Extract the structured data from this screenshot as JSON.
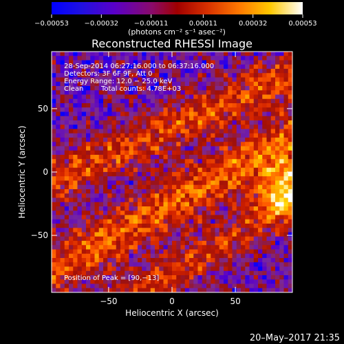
{
  "chart_data": {
    "type": "heatmap",
    "title": "Reconstructed RHESSI Image",
    "xlabel": "Heliocentric X (arcsec)",
    "ylabel": "Heliocentric Y (arcsec)",
    "xlim": [
      -95,
      95
    ],
    "ylim": [
      -95,
      95
    ],
    "x_ticks": [
      -50,
      0,
      50
    ],
    "y_ticks": [
      -50,
      0,
      50
    ],
    "x_tick_labels": [
      "−50",
      "0",
      "50"
    ],
    "y_tick_labels": [
      "−50",
      "0",
      "50"
    ],
    "colorbar": {
      "range": [
        -0.00053,
        0.00053
      ],
      "ticks": [
        -0.00053,
        -0.00032,
        -0.00011,
        0.00011,
        0.00032,
        0.00053
      ],
      "tick_labels": [
        "−0.00053",
        "−0.00032",
        "−0.00011",
        "0.00011",
        "0.00032",
        "0.00053"
      ],
      "unit_label": "(photons cm⁻² s⁻¹ asec⁻²)"
    },
    "annotations": {
      "time": "28-Sep-2014 06:27:16.000 to 06:37:16.000",
      "detectors": "Detectors: 3F 6F 9F, Att 0",
      "energy": "Energy Range: 12.0 − 25.0 keV",
      "method": "Clean",
      "counts": "Total counts: 4.78E+03",
      "peak": "Position of Peak = [90,−13]"
    },
    "peak_position": [
      90,
      -13
    ],
    "footer_date": "20–May–2017 21:35",
    "colors": {
      "background": "#000000",
      "colormap_stops": [
        "#0000ff",
        "#5a00c8",
        "#7a2a9a",
        "#a01008",
        "#d02000",
        "#ff5a00",
        "#ff9a00",
        "#ffd800",
        "#ffffff"
      ]
    }
  }
}
